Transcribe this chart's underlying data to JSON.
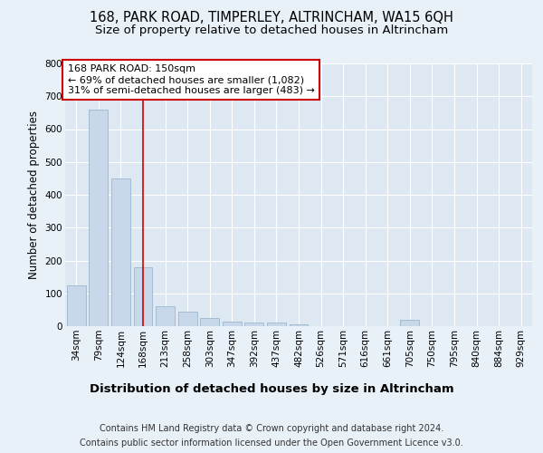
{
  "title": "168, PARK ROAD, TIMPERLEY, ALTRINCHAM, WA15 6QH",
  "subtitle": "Size of property relative to detached houses in Altrincham",
  "xlabel": "Distribution of detached houses by size in Altrincham",
  "ylabel": "Number of detached properties",
  "footer_line1": "Contains HM Land Registry data © Crown copyright and database right 2024.",
  "footer_line2": "Contains public sector information licensed under the Open Government Licence v3.0.",
  "bar_labels": [
    "34sqm",
    "79sqm",
    "124sqm",
    "168sqm",
    "213sqm",
    "258sqm",
    "303sqm",
    "347sqm",
    "392sqm",
    "437sqm",
    "482sqm",
    "526sqm",
    "571sqm",
    "616sqm",
    "661sqm",
    "705sqm",
    "750sqm",
    "795sqm",
    "840sqm",
    "884sqm",
    "929sqm"
  ],
  "bar_values": [
    125,
    660,
    450,
    180,
    60,
    45,
    25,
    15,
    10,
    10,
    5,
    0,
    0,
    0,
    0,
    20,
    0,
    0,
    0,
    0,
    0
  ],
  "bar_color": "#c8d8ea",
  "bar_edge_color": "#9ab8cc",
  "marker_index": 3,
  "marker_color": "#cc0000",
  "annotation_text": "168 PARK ROAD: 150sqm\n← 69% of detached houses are smaller (1,082)\n31% of semi-detached houses are larger (483) →",
  "annotation_box_facecolor": "#ffffff",
  "annotation_box_edgecolor": "#cc0000",
  "bg_color": "#e8f0f8",
  "plot_bg_color": "#dde8f2",
  "ylim": [
    0,
    800
  ],
  "yticks": [
    0,
    100,
    200,
    300,
    400,
    500,
    600,
    700,
    800
  ],
  "title_fontsize": 10.5,
  "subtitle_fontsize": 9.5,
  "xlabel_fontsize": 9.5,
  "ylabel_fontsize": 8.5,
  "tick_fontsize": 7.5,
  "annotation_fontsize": 8,
  "footer_fontsize": 7
}
